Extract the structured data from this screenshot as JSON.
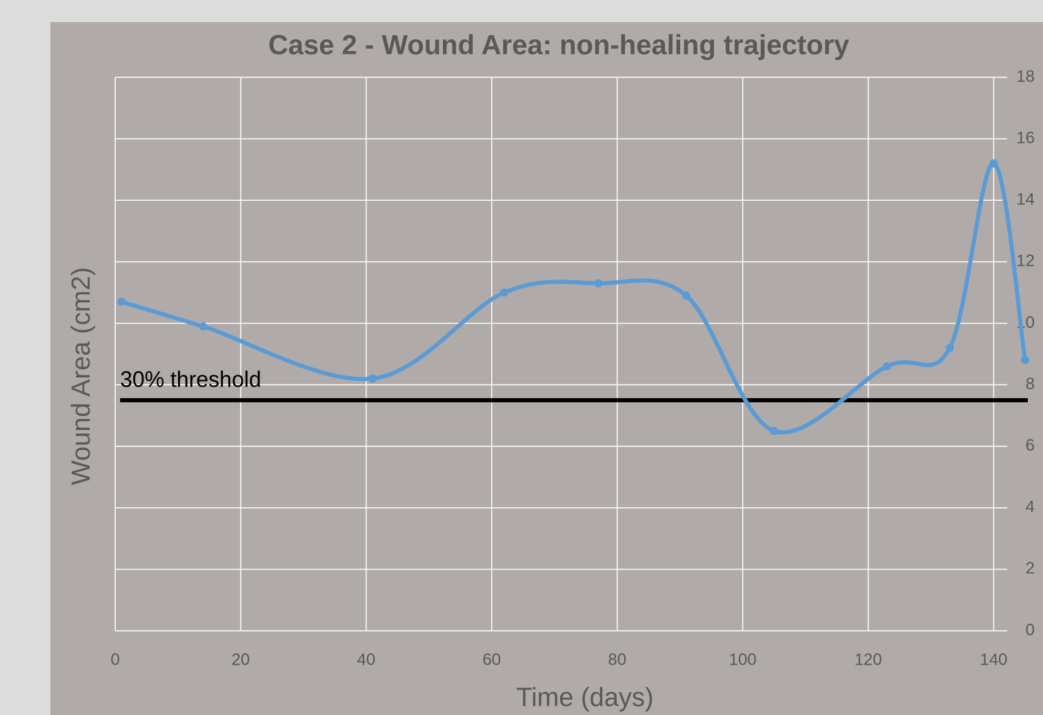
{
  "chart_data": {
    "type": "line",
    "title": "Case 2 - Wound Area: non-healing trajectory",
    "xlabel": "Time (days)",
    "ylabel": "Wound Area (cm2)",
    "x": [
      1,
      14,
      41,
      62,
      77,
      91,
      105,
      123,
      133,
      140,
      145
    ],
    "series": [
      {
        "name": "Wound Area",
        "color": "#5b9bd5",
        "values": [
          10.7,
          9.9,
          8.2,
          11.0,
          11.3,
          10.9,
          6.5,
          8.6,
          9.2,
          15.2,
          8.8
        ]
      }
    ],
    "threshold": {
      "label": "30% threshold",
      "value": 7.5,
      "x": [
        1,
        145
      ],
      "color": "#000000"
    },
    "xlim": [
      0,
      145
    ],
    "xticks": [
      0,
      20,
      40,
      60,
      80,
      100,
      120,
      140
    ],
    "ylim": [
      0,
      18
    ],
    "yticks": [
      0,
      2,
      4,
      6,
      8,
      10,
      12,
      14,
      16,
      18
    ],
    "grid": true,
    "smooth": true
  }
}
